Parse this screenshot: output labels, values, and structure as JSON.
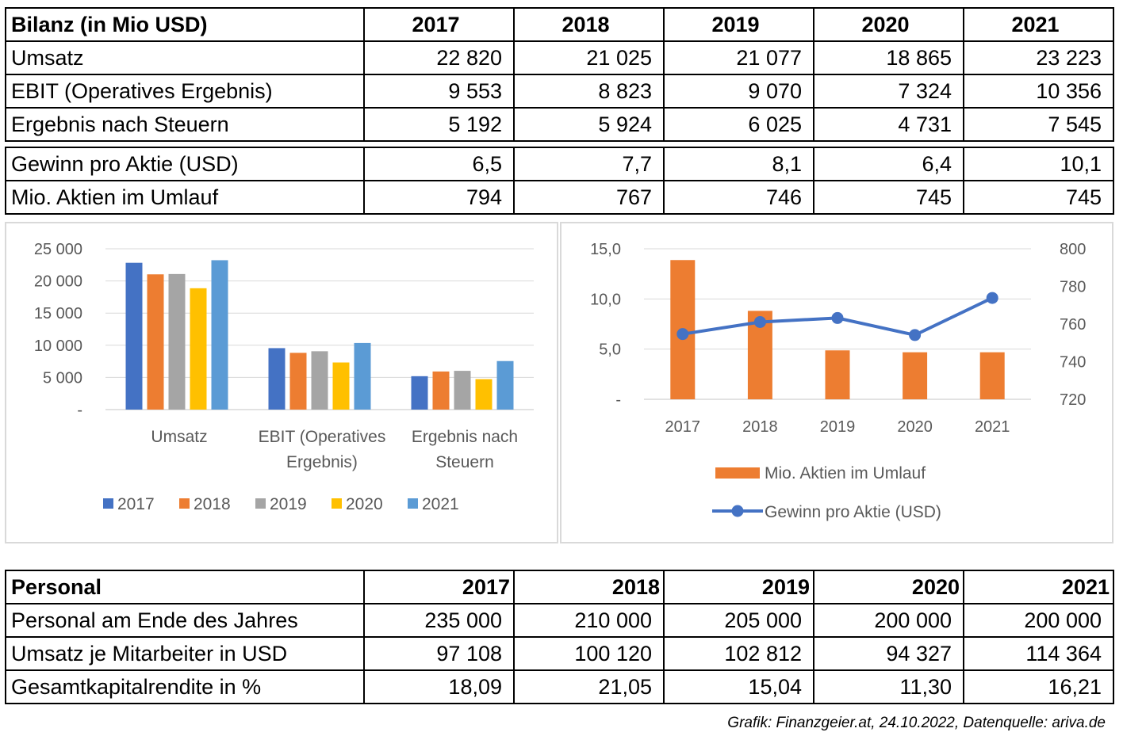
{
  "bilanz": {
    "header": "Bilanz (in Mio USD)",
    "years": [
      "2017",
      "2018",
      "2019",
      "2020",
      "2021"
    ],
    "rows": [
      {
        "label": "Umsatz",
        "values": [
          "22 820",
          "21 025",
          "21 077",
          "18 865",
          "23 223"
        ]
      },
      {
        "label": "EBIT (Operatives Ergebnis)",
        "values": [
          "9 553",
          "8 823",
          "9 070",
          "7 324",
          "10 356"
        ]
      },
      {
        "label": "Ergebnis nach Steuern",
        "values": [
          "5 192",
          "5 924",
          "6 025",
          "4 731",
          "7 545"
        ]
      }
    ],
    "rows2": [
      {
        "label": "Gewinn pro Aktie (USD)",
        "values": [
          "6,5",
          "7,7",
          "8,1",
          "6,4",
          "10,1"
        ]
      },
      {
        "label": "Mio. Aktien im Umlauf",
        "values": [
          "794",
          "767",
          "746",
          "745",
          "745"
        ]
      }
    ]
  },
  "personal": {
    "header": "Personal",
    "years": [
      "2017",
      "2018",
      "2019",
      "2020",
      "2021"
    ],
    "rows": [
      {
        "label": "Personal am Ende des Jahres",
        "values": [
          "235 000",
          "210 000",
          "205 000",
          "200 000",
          "200 000"
        ]
      },
      {
        "label": "Umsatz je Mitarbeiter in USD",
        "values": [
          "97 108",
          "100 120",
          "102 812",
          "94 327",
          "114 364"
        ]
      },
      {
        "label": "Gesamtkapitalrendite in %",
        "values": [
          "18,09",
          "21,05",
          "15,04",
          "11,30",
          "16,21"
        ]
      }
    ]
  },
  "source_note": "Grafik: Finanzgeier.at, 24.10.2022, Datenquelle: ariva.de",
  "chart_data": [
    {
      "type": "bar",
      "categories": [
        [
          "Umsatz"
        ],
        [
          "EBIT (Operatives",
          "Ergebnis)"
        ],
        [
          "Ergebnis nach",
          "Steuern"
        ]
      ],
      "series": [
        {
          "name": "2017",
          "color": "#4472c4",
          "values": [
            22820,
            9553,
            5192
          ]
        },
        {
          "name": "2018",
          "color": "#ed7d31",
          "values": [
            21025,
            8823,
            5924
          ]
        },
        {
          "name": "2019",
          "color": "#a5a5a5",
          "values": [
            21077,
            9070,
            6025
          ]
        },
        {
          "name": "2020",
          "color": "#ffc000",
          "values": [
            18865,
            7324,
            4731
          ]
        },
        {
          "name": "2021",
          "color": "#5b9bd5",
          "values": [
            23223,
            10356,
            7545
          ]
        }
      ],
      "yticks": [
        "-",
        "5 000",
        "10 000",
        "15 000",
        "20 000",
        "25 000"
      ],
      "ylim": [
        0,
        25000
      ],
      "grid": true,
      "legend": "bottom"
    },
    {
      "type": "bar+line",
      "categories": [
        "2017",
        "2018",
        "2019",
        "2020",
        "2021"
      ],
      "bar_series": {
        "name": "Mio. Aktien im Umlauf",
        "color": "#ed7d31",
        "axis": "right",
        "values": [
          794,
          767,
          746,
          745,
          745
        ]
      },
      "line_series": {
        "name": "Gewinn pro Aktie (USD)",
        "color": "#4472c4",
        "axis": "left",
        "values": [
          6.5,
          7.7,
          8.1,
          6.4,
          10.1
        ]
      },
      "left_ticks": [
        "-",
        "5,0",
        "10,0",
        "15,0"
      ],
      "left_ylim": [
        0,
        15
      ],
      "right_ticks": [
        "720",
        "740",
        "760",
        "780",
        "800"
      ],
      "right_ylim": [
        720,
        800
      ],
      "grid": true,
      "legend": "bottom"
    }
  ]
}
